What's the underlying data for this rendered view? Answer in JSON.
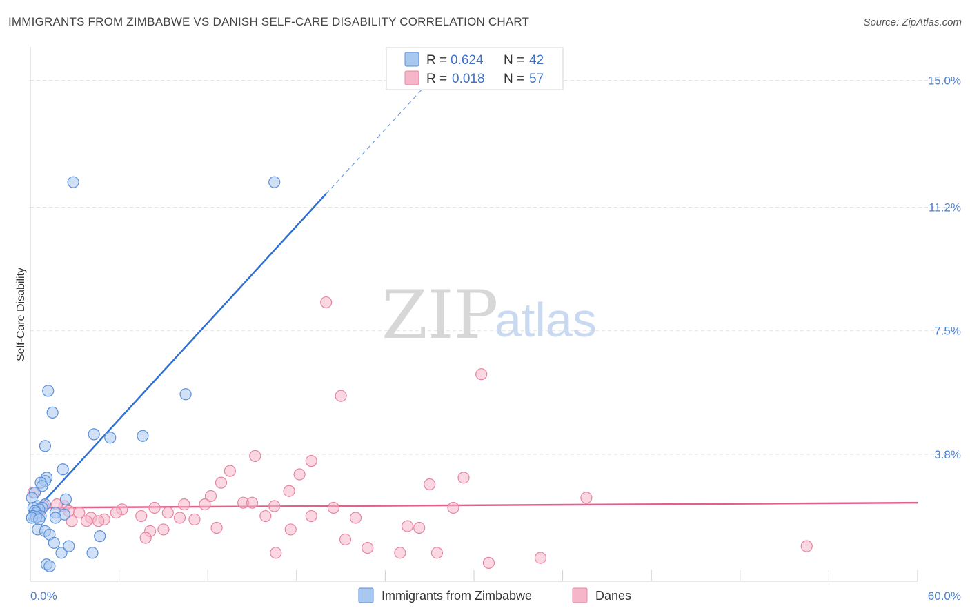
{
  "title": "IMMIGRANTS FROM ZIMBABWE VS DANISH SELF-CARE DISABILITY CORRELATION CHART",
  "source": "Source: ZipAtlas.com",
  "watermark": {
    "zip": "ZIP",
    "atlas": "atlas"
  },
  "colors": {
    "blue_fill": "#a9c8f0",
    "blue_stroke": "#5b8fd8",
    "blue_line": "#2e6fd1",
    "pink_fill": "#f6b6c9",
    "pink_stroke": "#e784a3",
    "pink_line": "#e0628b",
    "grid": "#e2e2e2",
    "axis_text": "#4a7fd0"
  },
  "legend": {
    "rows": [
      {
        "r_label": "R =",
        "r_value": "0.624",
        "n_label": "N =",
        "n_value": "42"
      },
      {
        "r_label": "R =",
        "r_value": "0.018",
        "n_label": "N =",
        "n_value": "57"
      }
    ]
  },
  "bottom_legend": [
    "Immigrants from Zimbabwe",
    "Danes"
  ],
  "chart_data": {
    "type": "scatter",
    "title": "IMMIGRANTS FROM ZIMBABWE VS DANISH SELF-CARE DISABILITY CORRELATION CHART",
    "xlabel": "",
    "ylabel": "Self-Care Disability",
    "xlim": [
      0,
      60
    ],
    "ylim": [
      0,
      16
    ],
    "x_tick_labels": [
      "0.0%",
      "60.0%"
    ],
    "y_ticks": [
      3.8,
      7.5,
      11.2,
      15.0
    ],
    "y_tick_labels": [
      "3.8%",
      "7.5%",
      "11.2%",
      "15.0%"
    ],
    "series": [
      {
        "name": "Immigrants from Zimbabwe",
        "R": 0.624,
        "N": 42,
        "trend": {
          "x0": 0.0,
          "y0": 1.95,
          "x1": 20.0,
          "y1": 11.6,
          "dash_to_x": 28.0
        },
        "points": [
          [
            2.9,
            11.95
          ],
          [
            16.5,
            11.95
          ],
          [
            1.2,
            5.7
          ],
          [
            10.5,
            5.6
          ],
          [
            1.5,
            5.05
          ],
          [
            4.3,
            4.4
          ],
          [
            5.4,
            4.3
          ],
          [
            7.6,
            4.35
          ],
          [
            1.0,
            4.05
          ],
          [
            2.2,
            3.35
          ],
          [
            1.1,
            3.1
          ],
          [
            1.0,
            3.0
          ],
          [
            0.7,
            2.95
          ],
          [
            0.8,
            2.85
          ],
          [
            0.3,
            2.65
          ],
          [
            0.1,
            2.5
          ],
          [
            2.4,
            2.45
          ],
          [
            1.0,
            2.3
          ],
          [
            0.5,
            2.25
          ],
          [
            0.8,
            2.2
          ],
          [
            0.2,
            2.2
          ],
          [
            0.6,
            2.15
          ],
          [
            0.3,
            2.1
          ],
          [
            1.7,
            2.05
          ],
          [
            0.4,
            2.05
          ],
          [
            2.3,
            2.0
          ],
          [
            0.2,
            1.95
          ],
          [
            0.7,
            1.95
          ],
          [
            0.4,
            1.92
          ],
          [
            0.1,
            1.9
          ],
          [
            1.7,
            1.9
          ],
          [
            0.6,
            1.85
          ],
          [
            0.5,
            1.55
          ],
          [
            1.0,
            1.5
          ],
          [
            1.3,
            1.4
          ],
          [
            4.7,
            1.35
          ],
          [
            1.6,
            1.15
          ],
          [
            2.1,
            0.85
          ],
          [
            4.2,
            0.85
          ],
          [
            1.1,
            0.5
          ],
          [
            1.3,
            0.45
          ],
          [
            2.6,
            1.05
          ]
        ]
      },
      {
        "name": "Danes",
        "R": 0.018,
        "N": 57,
        "trend": {
          "x0": 0.0,
          "y0": 2.2,
          "x1": 60.0,
          "y1": 2.35
        },
        "points": [
          [
            20.0,
            8.35
          ],
          [
            30.5,
            6.2
          ],
          [
            21.0,
            5.55
          ],
          [
            15.2,
            3.75
          ],
          [
            19.0,
            3.6
          ],
          [
            13.5,
            3.3
          ],
          [
            18.2,
            3.2
          ],
          [
            29.3,
            3.1
          ],
          [
            12.9,
            2.95
          ],
          [
            27.0,
            2.9
          ],
          [
            17.5,
            2.7
          ],
          [
            12.2,
            2.55
          ],
          [
            37.6,
            2.5
          ],
          [
            14.4,
            2.35
          ],
          [
            11.8,
            2.3
          ],
          [
            10.4,
            2.3
          ],
          [
            0.9,
            2.25
          ],
          [
            2.3,
            2.25
          ],
          [
            15.0,
            2.35
          ],
          [
            16.5,
            2.25
          ],
          [
            20.5,
            2.2
          ],
          [
            28.6,
            2.2
          ],
          [
            6.2,
            2.15
          ],
          [
            8.4,
            2.2
          ],
          [
            2.6,
            2.1
          ],
          [
            0.6,
            2.05
          ],
          [
            3.3,
            2.05
          ],
          [
            5.8,
            2.05
          ],
          [
            9.3,
            2.05
          ],
          [
            19.0,
            1.95
          ],
          [
            7.5,
            1.95
          ],
          [
            15.9,
            1.95
          ],
          [
            4.1,
            1.9
          ],
          [
            22.0,
            1.9
          ],
          [
            10.1,
            1.9
          ],
          [
            11.1,
            1.85
          ],
          [
            5.0,
            1.85
          ],
          [
            3.8,
            1.8
          ],
          [
            4.6,
            1.8
          ],
          [
            2.8,
            1.8
          ],
          [
            25.5,
            1.65
          ],
          [
            26.3,
            1.6
          ],
          [
            12.6,
            1.6
          ],
          [
            9.0,
            1.55
          ],
          [
            17.6,
            1.55
          ],
          [
            8.1,
            1.5
          ],
          [
            7.8,
            1.3
          ],
          [
            21.3,
            1.25
          ],
          [
            22.8,
            1.0
          ],
          [
            52.5,
            1.05
          ],
          [
            16.6,
            0.85
          ],
          [
            25.0,
            0.85
          ],
          [
            27.5,
            0.85
          ],
          [
            31.0,
            0.55
          ],
          [
            34.5,
            0.7
          ],
          [
            0.2,
            2.65
          ],
          [
            1.8,
            2.3
          ]
        ]
      }
    ]
  }
}
